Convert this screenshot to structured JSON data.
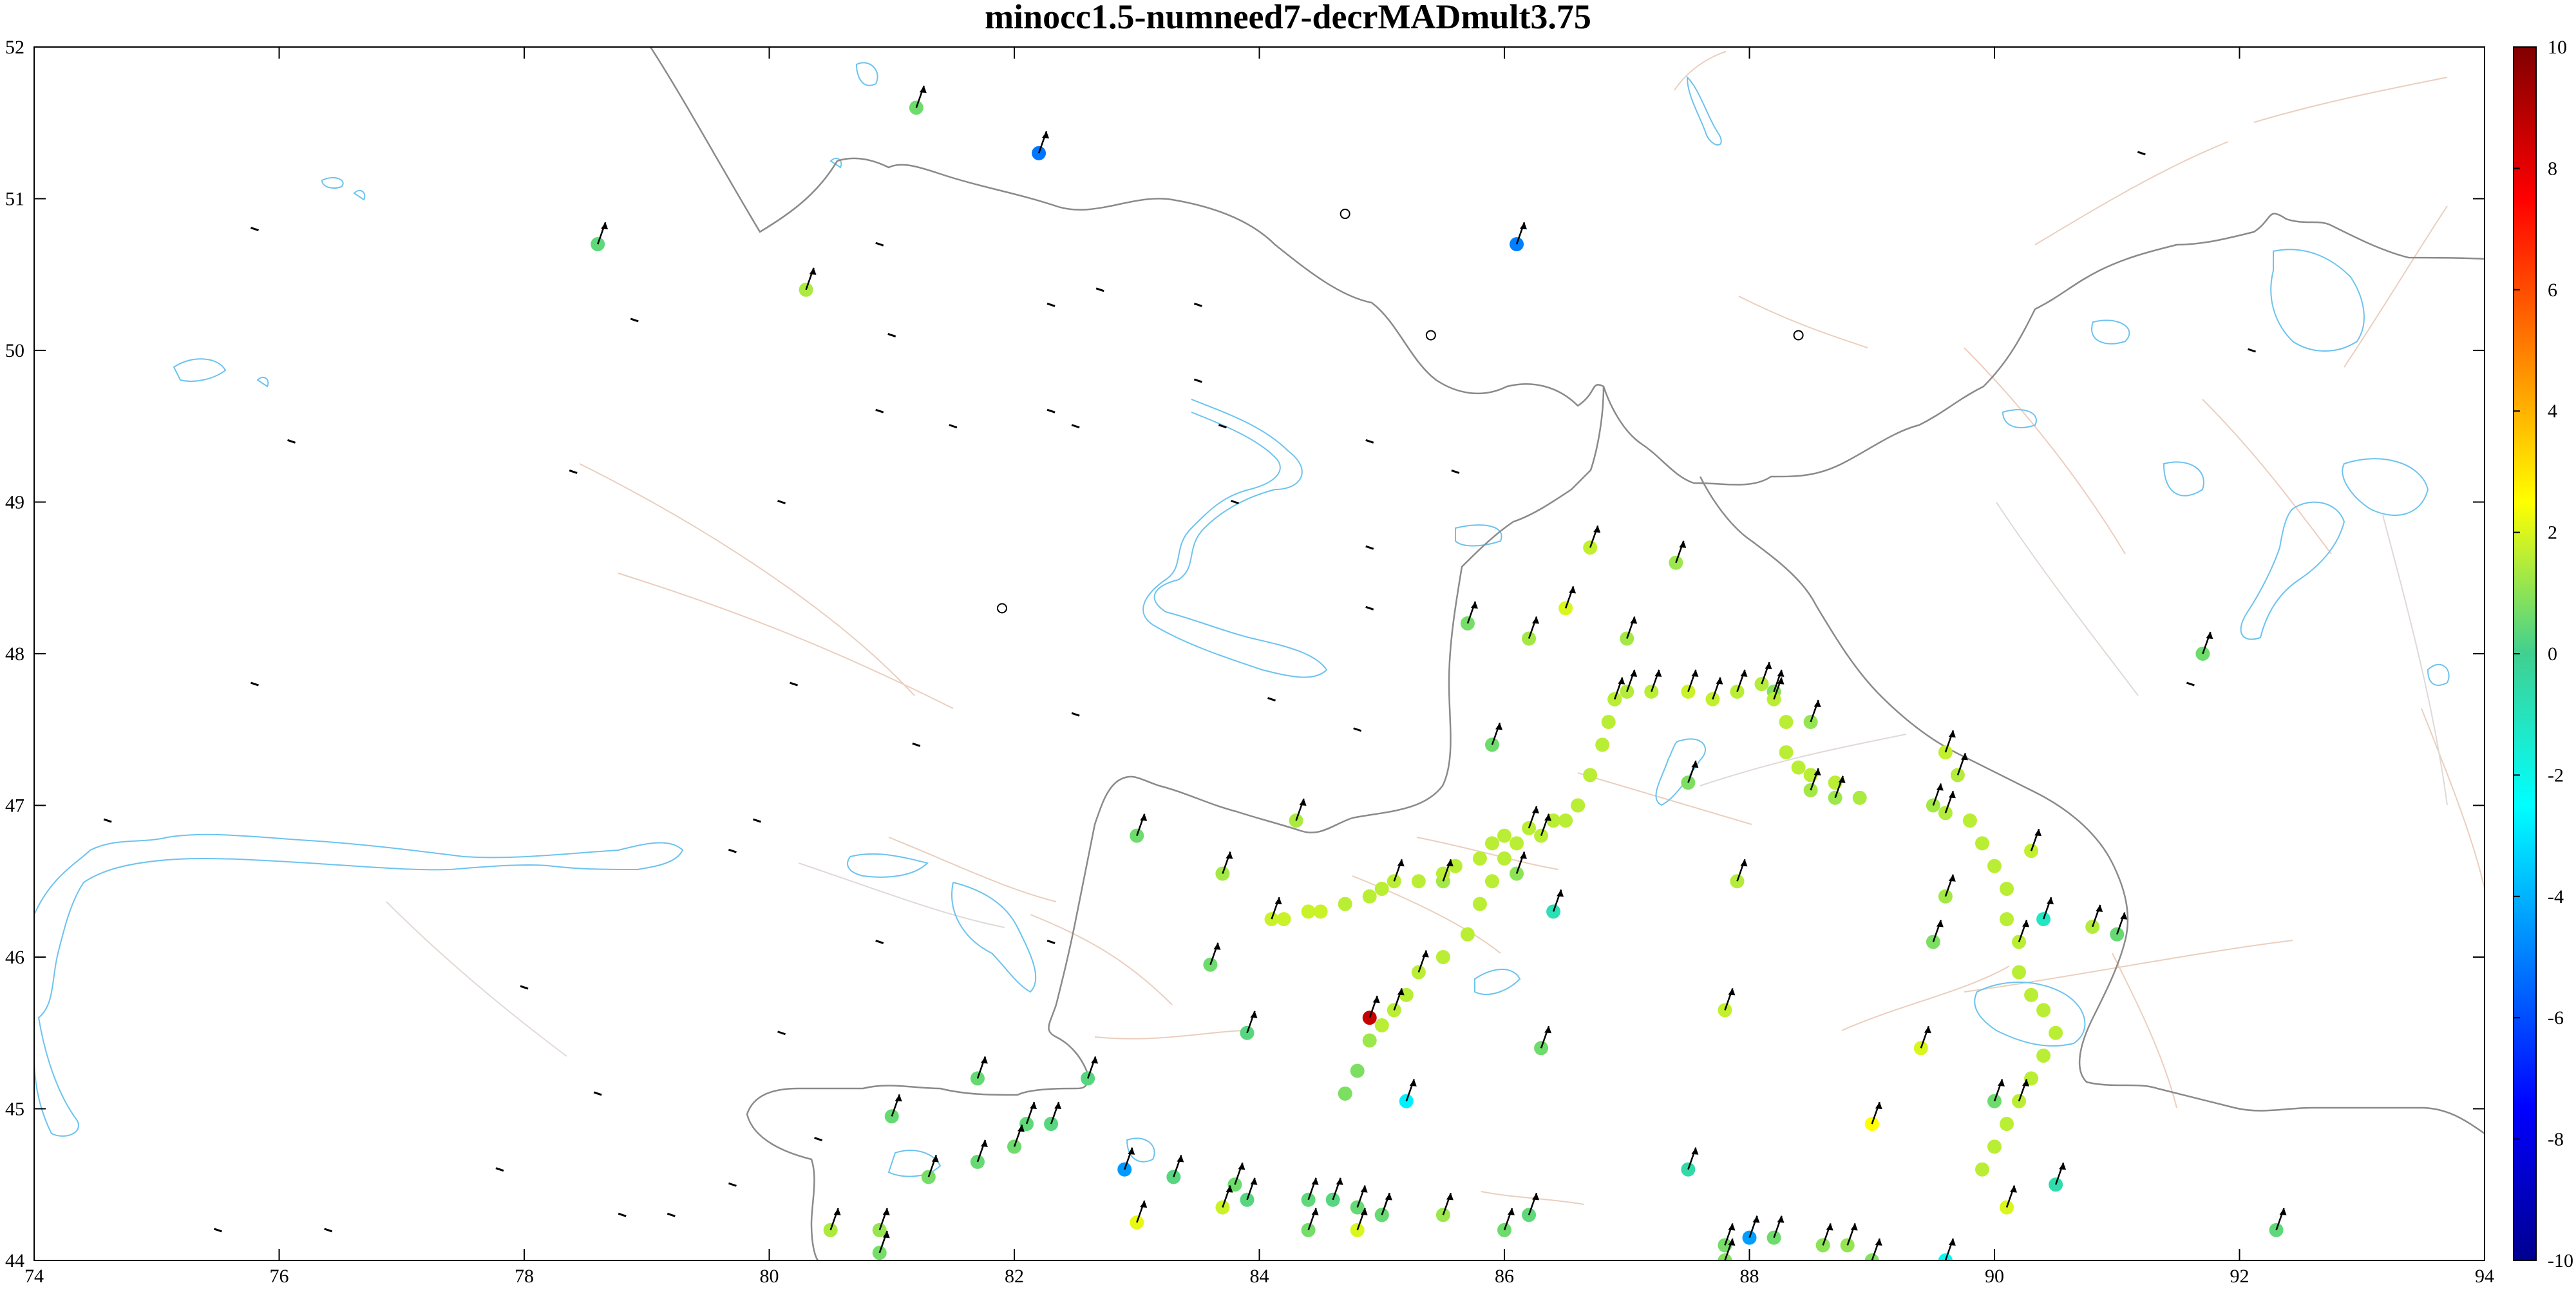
{
  "chart_data": {
    "type": "scatter",
    "title": "minocc1.5-numneed7-decrMADmult3.75",
    "xlabel": "",
    "ylabel": "",
    "xlim": [
      74,
      94
    ],
    "ylim": [
      44,
      52
    ],
    "x_ticks": [
      "74",
      "76",
      "78",
      "80",
      "82",
      "84",
      "86",
      "88",
      "90",
      "92",
      "94"
    ],
    "y_ticks": [
      "44",
      "45",
      "46",
      "47",
      "48",
      "49",
      "50",
      "51",
      "52"
    ],
    "colorbar": {
      "colormap": "jet",
      "range": [
        -10,
        10
      ],
      "ticks": [
        "10",
        "8",
        "6",
        "4",
        "2",
        "0",
        "-2",
        "-4",
        "-6",
        "-8",
        "-10"
      ]
    },
    "grid": false,
    "colors": {
      "coastline_and_lakes": "#6cc3ee",
      "borders": "#8a8a8a",
      "faults": "#f0c8b4",
      "arrows": "#000000"
    },
    "points": [
      [
        81.2,
        51.6,
        0.6
      ],
      [
        82.2,
        51.3,
        -5.2
      ],
      [
        78.6,
        50.7,
        0.4
      ],
      [
        80.3,
        50.4,
        1.4
      ],
      [
        86.1,
        50.7,
        -5.0
      ],
      [
        86.7,
        48.7,
        1.7
      ],
      [
        87.4,
        48.6,
        1.2
      ],
      [
        85.7,
        48.2,
        0.7
      ],
      [
        86.5,
        48.3,
        2.0
      ],
      [
        86.2,
        48.1,
        1.3
      ],
      [
        87.0,
        48.1,
        1.3
      ],
      [
        91.7,
        48.0,
        0.6
      ],
      [
        85.9,
        47.4,
        0.6
      ],
      [
        86.9,
        47.7,
        -1.0
      ],
      [
        87.0,
        47.75,
        1.5
      ],
      [
        87.2,
        47.75,
        1.6
      ],
      [
        87.5,
        47.75,
        1.8
      ],
      [
        87.7,
        47.7,
        1.7
      ],
      [
        87.9,
        47.75,
        1.6
      ],
      [
        88.1,
        47.8,
        1.5
      ],
      [
        88.2,
        47.75,
        0.9
      ],
      [
        88.5,
        47.55,
        1.1
      ],
      [
        89.6,
        47.35,
        1.7
      ],
      [
        89.7,
        47.2,
        1.5
      ],
      [
        87.5,
        47.15,
        0.8
      ],
      [
        88.5,
        47.1,
        1.3
      ],
      [
        88.7,
        47.05,
        1.2
      ],
      [
        89.5,
        47.0,
        1.3
      ],
      [
        89.6,
        46.95,
        1.5
      ],
      [
        90.3,
        46.7,
        1.7
      ],
      [
        83.0,
        46.8,
        0.6
      ],
      [
        84.3,
        46.9,
        1.4
      ],
      [
        83.7,
        46.55,
        1.3
      ],
      [
        85.5,
        46.5,
        1.3
      ],
      [
        86.1,
        46.55,
        1.0
      ],
      [
        86.4,
        46.3,
        -0.8
      ],
      [
        87.9,
        46.5,
        1.5
      ],
      [
        89.6,
        46.4,
        1.3
      ],
      [
        90.4,
        46.25,
        -1.2
      ],
      [
        90.8,
        46.2,
        1.5
      ],
      [
        91.0,
        46.15,
        0.5
      ],
      [
        89.5,
        46.1,
        0.8
      ],
      [
        83.6,
        45.95,
        0.6
      ],
      [
        83.9,
        45.5,
        0.3
      ],
      [
        84.9,
        45.6,
        8.6
      ],
      [
        85.2,
        45.05,
        -2.8
      ],
      [
        86.3,
        45.4,
        0.6
      ],
      [
        87.8,
        45.65,
        1.7
      ],
      [
        89.4,
        45.4,
        2.0
      ],
      [
        90.0,
        45.05,
        0.6
      ],
      [
        89.0,
        44.9,
        2.5
      ],
      [
        81.7,
        45.2,
        0.5
      ],
      [
        82.6,
        45.2,
        0.3
      ],
      [
        81.0,
        44.95,
        0.5
      ],
      [
        82.1,
        44.9,
        0.4
      ],
      [
        82.3,
        44.9,
        0.3
      ],
      [
        82.0,
        44.75,
        0.6
      ],
      [
        81.7,
        44.65,
        0.5
      ],
      [
        81.3,
        44.55,
        0.7
      ],
      [
        82.9,
        44.6,
        -4.5
      ],
      [
        83.3,
        44.55,
        0.3
      ],
      [
        83.8,
        44.5,
        0.6
      ],
      [
        83.9,
        44.4,
        0.3
      ],
      [
        84.4,
        44.4,
        0.4
      ],
      [
        84.6,
        44.4,
        0.3
      ],
      [
        84.8,
        44.35,
        0.5
      ],
      [
        85.0,
        44.3,
        0.5
      ],
      [
        85.5,
        44.3,
        1.2
      ],
      [
        83.0,
        44.25,
        2.2
      ],
      [
        83.7,
        44.35,
        1.8
      ],
      [
        86.0,
        44.2,
        0.6
      ],
      [
        86.2,
        44.3,
        0.4
      ],
      [
        87.5,
        44.6,
        -0.5
      ],
      [
        88.0,
        44.15,
        -4.4
      ],
      [
        88.2,
        44.15,
        0.6
      ],
      [
        88.6,
        44.1,
        1.0
      ],
      [
        88.8,
        44.1,
        1.1
      ],
      [
        89.0,
        44.0,
        0.9
      ],
      [
        89.6,
        44.0,
        -2.2
      ],
      [
        90.5,
        44.5,
        -0.6
      ],
      [
        90.1,
        44.35,
        2.0
      ],
      [
        92.3,
        44.2,
        0.4
      ],
      [
        80.5,
        44.2,
        1.4
      ],
      [
        80.9,
        44.2,
        1.1
      ],
      [
        80.9,
        44.05,
        0.7
      ],
      [
        84.4,
        44.2,
        0.7
      ],
      [
        84.8,
        44.2,
        2.0
      ],
      [
        85.0,
        44.3,
        0.5
      ],
      [
        87.8,
        44.0,
        0.9
      ],
      [
        87.8,
        44.1,
        0.7
      ]
    ],
    "track_points": [
      [
        84.1,
        46.25,
        1.8
      ],
      [
        84.2,
        46.25,
        1.8
      ],
      [
        84.4,
        46.3,
        1.8
      ],
      [
        84.5,
        46.3,
        1.8
      ],
      [
        84.7,
        46.35,
        1.6
      ],
      [
        84.9,
        46.4,
        1.6
      ],
      [
        85.0,
        46.45,
        1.6
      ],
      [
        85.1,
        46.5,
        1.6
      ],
      [
        85.3,
        46.5,
        1.6
      ],
      [
        85.5,
        46.55,
        1.6
      ],
      [
        85.6,
        46.6,
        1.6
      ],
      [
        85.8,
        46.65,
        1.6
      ],
      [
        85.9,
        46.75,
        1.6
      ],
      [
        86.0,
        46.8,
        1.6
      ],
      [
        86.2,
        46.85,
        1.6
      ],
      [
        86.4,
        46.9,
        1.6
      ],
      [
        86.6,
        47.0,
        1.6
      ],
      [
        86.7,
        47.2,
        1.6
      ],
      [
        86.8,
        47.4,
        1.6
      ],
      [
        86.85,
        47.55,
        1.6
      ],
      [
        86.9,
        47.7,
        1.6
      ],
      [
        88.2,
        47.7,
        1.6
      ],
      [
        88.3,
        47.55,
        1.6
      ],
      [
        88.3,
        47.35,
        1.6
      ],
      [
        88.4,
        47.25,
        1.6
      ],
      [
        88.5,
        47.2,
        1.6
      ],
      [
        88.7,
        47.15,
        1.6
      ],
      [
        88.9,
        47.05,
        1.4
      ],
      [
        85.3,
        45.9,
        1.6
      ],
      [
        85.5,
        46.0,
        1.6
      ],
      [
        85.7,
        46.15,
        1.6
      ],
      [
        85.8,
        46.35,
        1.6
      ],
      [
        85.9,
        46.5,
        1.6
      ],
      [
        86.0,
        46.65,
        1.6
      ],
      [
        86.1,
        46.75,
        1.6
      ],
      [
        86.3,
        46.8,
        1.6
      ],
      [
        86.5,
        46.9,
        1.6
      ],
      [
        86.6,
        47.0,
        1.6
      ],
      [
        84.7,
        45.1,
        0.8
      ],
      [
        84.8,
        45.25,
        0.8
      ],
      [
        84.9,
        45.45,
        1.2
      ],
      [
        85.0,
        45.55,
        1.6
      ],
      [
        85.1,
        45.65,
        1.6
      ],
      [
        85.2,
        45.75,
        1.6
      ],
      [
        89.8,
        46.9,
        1.6
      ],
      [
        89.9,
        46.75,
        1.6
      ],
      [
        90.0,
        46.6,
        1.6
      ],
      [
        90.1,
        46.45,
        1.6
      ],
      [
        90.1,
        46.25,
        1.6
      ],
      [
        90.2,
        46.1,
        1.6
      ],
      [
        90.2,
        45.9,
        1.6
      ],
      [
        90.3,
        45.75,
        1.6
      ],
      [
        90.4,
        45.65,
        1.6
      ],
      [
        90.5,
        45.5,
        1.6
      ],
      [
        90.4,
        45.35,
        1.6
      ],
      [
        90.3,
        45.2,
        1.6
      ],
      [
        90.2,
        45.05,
        1.6
      ],
      [
        90.1,
        44.9,
        1.6
      ],
      [
        90.0,
        44.75,
        1.6
      ],
      [
        89.9,
        44.6,
        1.6
      ]
    ]
  }
}
